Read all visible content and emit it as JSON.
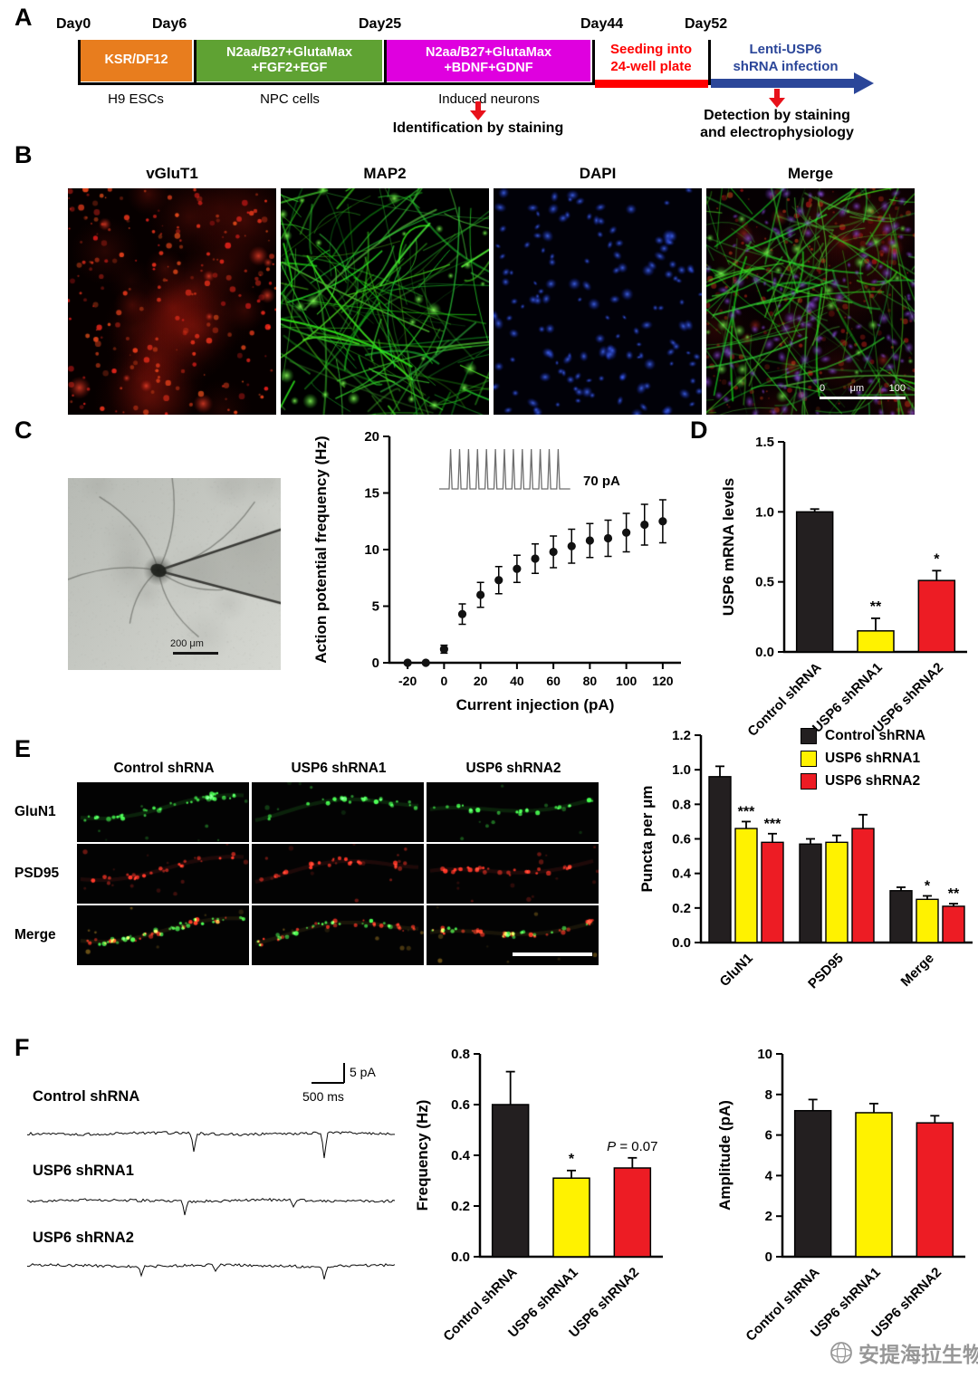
{
  "figure": {
    "background": "#ffffff"
  },
  "panels": {
    "A": {
      "label": "A",
      "days": [
        "Day0",
        "Day6",
        "Day25",
        "Day44",
        "Day52"
      ],
      "phases": [
        {
          "line1": "KSR/DF12",
          "line2": "",
          "color": "#E87D1E"
        },
        {
          "line1": "N2aa/B27+GlutaMax",
          "line2": "+FGF2+EGF",
          "color": "#5FA233"
        },
        {
          "line1": "N2aa/B27+GlutaMax",
          "line2": "+BDNF+GDNF",
          "color": "#DF00DF"
        },
        {
          "line1": "Seeding into",
          "line2": "24-well plate",
          "color": "#FF0000"
        },
        {
          "line1": "Lenti-USP6",
          "line2": "shRNA infection",
          "color": "#2B4699"
        }
      ],
      "below": [
        "H9 ESCs",
        "NPC cells",
        "Induced neurons"
      ],
      "arrow_color": "#E8111A",
      "annotations": {
        "identify": "Identification by staining",
        "detect_line1": "Detection by staining",
        "detect_line2": "and electrophysiology"
      }
    },
    "B": {
      "label": "B",
      "labels": [
        "vGluT1",
        "MAP2",
        "DAPI",
        "Merge"
      ],
      "scale": {
        "left": "0",
        "unit": "μm",
        "right": "100"
      }
    },
    "C": {
      "label": "C",
      "scale_label": "200 μm"
    },
    "D": {
      "label": "D"
    },
    "E": {
      "label": "E",
      "columns": [
        "Control shRNA",
        "USP6 shRNA1",
        "USP6 shRNA2"
      ],
      "rows": [
        "GluN1",
        "PSD95",
        "Merge"
      ]
    },
    "F": {
      "label": "F",
      "scale_v": "5 pA",
      "scale_h": "500 ms",
      "traces": [
        {
          "label": "Control shRNA",
          "events": [
            [
              185,
              20
            ],
            [
              330,
              27
            ]
          ]
        },
        {
          "label": "USP6 shRNA1",
          "events": [
            [
              175,
              16
            ],
            [
              296,
              7
            ]
          ]
        },
        {
          "label": "USP6 shRNA2",
          "events": [
            [
              128,
              11
            ],
            [
              210,
              6
            ],
            [
              330,
              15
            ]
          ]
        }
      ]
    }
  },
  "watermark": {
    "text": "安提海拉生物",
    "color": "#8F8F8F"
  },
  "chart_data": [
    {
      "id": "chart-ap",
      "type": "scatter",
      "xlabel": "Current injection (pA)",
      "ylabel": "Action potential frequency (Hz)",
      "xlim": [
        -30,
        130
      ],
      "ylim": [
        0,
        20
      ],
      "xticks": [
        -20,
        0,
        20,
        40,
        60,
        80,
        100,
        120
      ],
      "yticks": [
        0,
        5,
        10,
        15,
        20
      ],
      "x": [
        -20,
        -10,
        0,
        10,
        20,
        30,
        40,
        50,
        60,
        70,
        80,
        90,
        100,
        110,
        120
      ],
      "y": [
        0,
        0,
        1.2,
        4.3,
        6.0,
        7.3,
        8.3,
        9.2,
        9.8,
        10.3,
        10.8,
        11.0,
        11.5,
        12.2,
        12.5
      ],
      "err": [
        0,
        0,
        0.35,
        0.9,
        1.1,
        1.2,
        1.2,
        1.3,
        1.4,
        1.5,
        1.5,
        1.6,
        1.7,
        1.8,
        1.9
      ],
      "inset_label": "70 pA",
      "grid": false,
      "marker_color": "#111111"
    },
    {
      "id": "chart-mrna",
      "type": "bar",
      "ylabel": "USP6 mRNA levels",
      "ylim": [
        0,
        1.5
      ],
      "yticks": [
        0,
        0.5,
        1.0,
        1.5
      ],
      "categories": [
        "Control shRNA",
        "USP6 shRNA1",
        "USP6 shRNA2"
      ],
      "values": [
        1.0,
        0.15,
        0.51
      ],
      "errors": [
        0.02,
        0.09,
        0.07
      ],
      "sig": [
        "",
        "**",
        "*"
      ],
      "colors": [
        "#231F20",
        "#FFF200",
        "#ED1C24"
      ]
    },
    {
      "id": "chart-puncta",
      "type": "grouped-bar",
      "ylabel": "Puncta per μm",
      "ylim": [
        0,
        1.2
      ],
      "yticks": [
        0,
        0.2,
        0.4,
        0.6,
        0.8,
        1.0,
        1.2
      ],
      "categories": [
        "GluN1",
        "PSD95",
        "Merge"
      ],
      "legend_position": "top-right",
      "series": [
        {
          "name": "Control shRNA",
          "color": "#231F20",
          "values": [
            0.96,
            0.57,
            0.3
          ],
          "errors": [
            0.06,
            0.03,
            0.02
          ],
          "sig": [
            "",
            "",
            ""
          ]
        },
        {
          "name": "USP6 shRNA1",
          "color": "#FFF200",
          "values": [
            0.66,
            0.58,
            0.25
          ],
          "errors": [
            0.04,
            0.04,
            0.02
          ],
          "sig": [
            "***",
            "",
            "*"
          ]
        },
        {
          "name": "USP6 shRNA2",
          "color": "#ED1C24",
          "values": [
            0.58,
            0.66,
            0.21
          ],
          "errors": [
            0.05,
            0.08,
            0.015
          ],
          "sig": [
            "***",
            "",
            "**"
          ]
        }
      ]
    },
    {
      "id": "chart-freq",
      "type": "bar",
      "ylabel": "Frequency (Hz)",
      "ylim": [
        0,
        0.8
      ],
      "yticks": [
        0,
        0.2,
        0.4,
        0.6,
        0.8
      ],
      "categories": [
        "Control shRNA",
        "USP6 shRNA1",
        "USP6 shRNA2"
      ],
      "values": [
        0.6,
        0.31,
        0.35
      ],
      "errors": [
        0.13,
        0.03,
        0.04
      ],
      "sig": [
        "",
        "*",
        "P = 0.07"
      ],
      "colors": [
        "#231F20",
        "#FFF200",
        "#ED1C24"
      ]
    },
    {
      "id": "chart-amp",
      "type": "bar",
      "ylabel": "Amplitude (pA)",
      "ylim": [
        0,
        10
      ],
      "yticks": [
        0,
        2,
        4,
        6,
        8,
        10
      ],
      "categories": [
        "Control shRNA",
        "USP6 shRNA1",
        "USP6 shRNA2"
      ],
      "values": [
        7.2,
        7.1,
        6.6
      ],
      "errors": [
        0.55,
        0.45,
        0.35
      ],
      "sig": [
        "",
        "",
        ""
      ],
      "colors": [
        "#231F20",
        "#FFF200",
        "#ED1C24"
      ]
    }
  ]
}
